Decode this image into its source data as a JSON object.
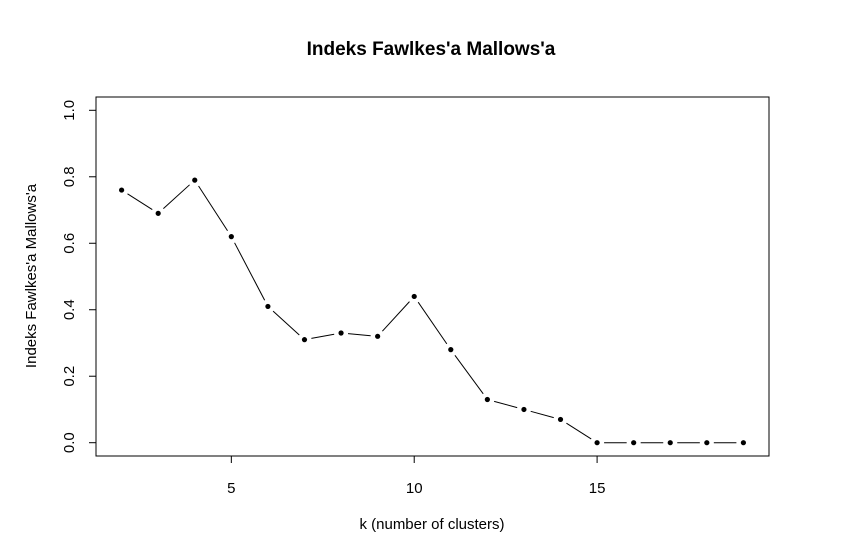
{
  "chart_data": {
    "type": "line",
    "title": "Indeks Fawlkes'a Mallows'a",
    "xlabel": "k (number of clusters)",
    "ylabel": "Indeks Fawlkes'a Mallows'a",
    "xlim": [
      1.3,
      19.7
    ],
    "ylim": [
      -0.04,
      1.04
    ],
    "x_ticks": [
      5,
      10,
      15
    ],
    "x_tick_labels": [
      "5",
      "10",
      "15"
    ],
    "y_ticks": [
      0.0,
      0.2,
      0.4,
      0.6,
      0.8,
      1.0
    ],
    "y_tick_labels": [
      "0.0",
      "0.2",
      "0.4",
      "0.6",
      "0.8",
      "1.0"
    ],
    "series": [
      {
        "x": [
          2,
          3,
          4,
          5,
          6,
          7,
          8,
          9,
          10,
          11,
          12,
          13,
          14,
          15,
          16,
          17,
          18,
          19
        ],
        "values": [
          0.76,
          0.69,
          0.79,
          0.62,
          0.41,
          0.31,
          0.33,
          0.32,
          0.44,
          0.28,
          0.13,
          0.1,
          0.07,
          0.0,
          0.0,
          0.0,
          0.0,
          0.0
        ]
      }
    ],
    "grid": false,
    "line_style": "overplotted points and lines (type b)",
    "color": "#000000"
  }
}
